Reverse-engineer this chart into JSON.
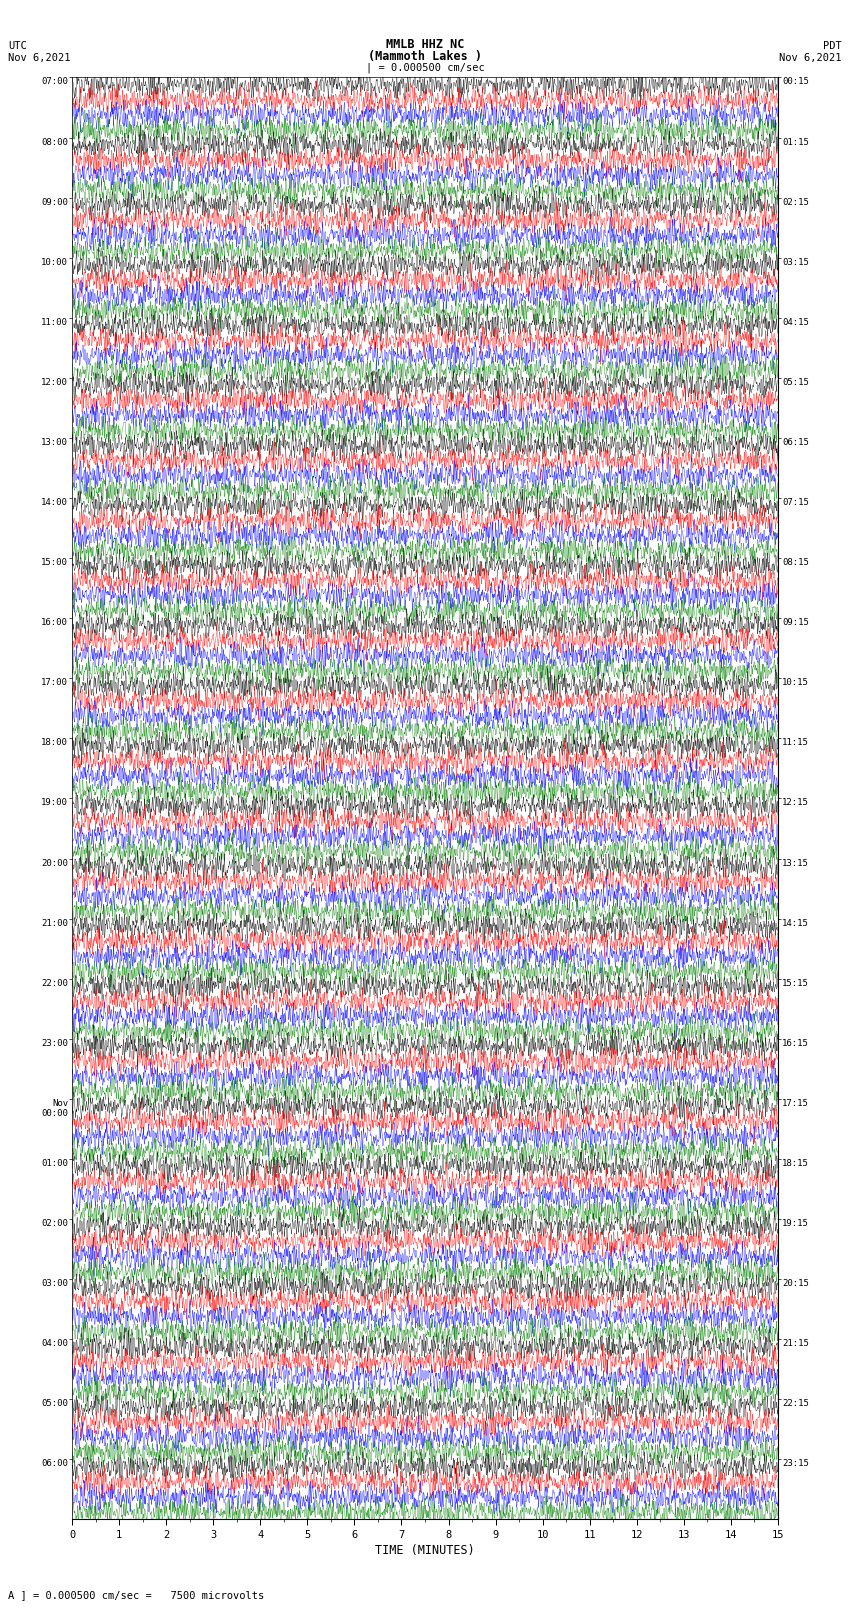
{
  "title_line1": "MMLB HHZ NC",
  "title_line2": "(Mammoth Lakes )",
  "title_line3": "| = 0.000500 cm/sec",
  "left_label_top": "UTC",
  "left_label_date": "Nov 6,2021",
  "right_label_top": "PDT",
  "right_label_date": "Nov 6,2021",
  "xlabel": "TIME (MINUTES)",
  "bottom_note": "A ] = 0.000500 cm/sec =   7500 microvolts",
  "utc_times": [
    "07:00",
    "08:00",
    "09:00",
    "10:00",
    "11:00",
    "12:00",
    "13:00",
    "14:00",
    "15:00",
    "16:00",
    "17:00",
    "18:00",
    "19:00",
    "20:00",
    "21:00",
    "22:00",
    "23:00",
    "Nov\n00:00",
    "01:00",
    "02:00",
    "03:00",
    "04:00",
    "05:00",
    "06:00"
  ],
  "pdt_times": [
    "00:15",
    "01:15",
    "02:15",
    "03:15",
    "04:15",
    "05:15",
    "06:15",
    "07:15",
    "08:15",
    "09:15",
    "10:15",
    "11:15",
    "12:15",
    "13:15",
    "14:15",
    "15:15",
    "16:15",
    "17:15",
    "18:15",
    "19:15",
    "20:15",
    "21:15",
    "22:15",
    "23:15"
  ],
  "n_rows": 24,
  "n_traces_per_row": 4,
  "trace_colors": [
    "black",
    "red",
    "blue",
    "green"
  ],
  "bg_color": "white",
  "trace_amplitude": 0.38,
  "noise_seed": 42,
  "duration_minutes": 15,
  "samples_per_trace": 9000,
  "grid_color": "#aaaaaa",
  "linewidth": 0.25
}
